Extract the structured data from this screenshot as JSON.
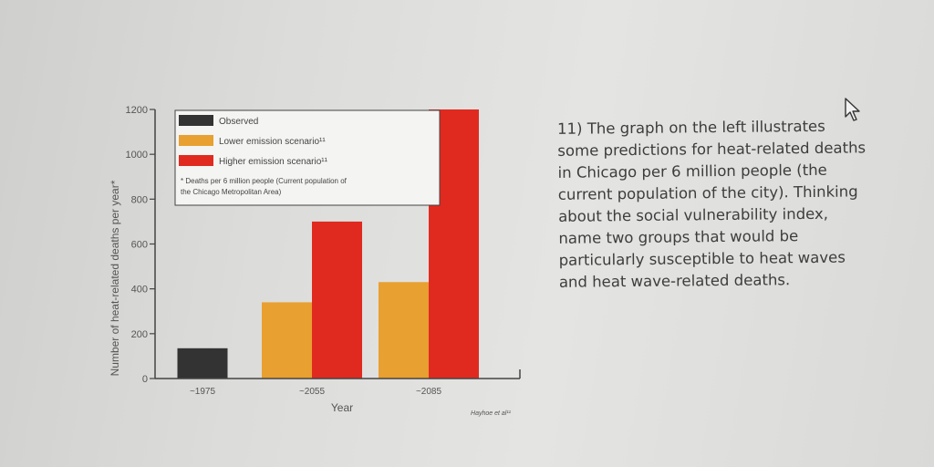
{
  "chart_data": {
    "type": "bar",
    "ylabel": "Number of heat-related deaths per year*",
    "xlabel": "Year",
    "categories": [
      "~1975",
      "~2055",
      "~2085"
    ],
    "ylim": [
      0,
      1200
    ],
    "yticks": [
      0,
      200,
      400,
      600,
      800,
      1000,
      1200
    ],
    "series": [
      {
        "name": "Observed",
        "color": "#333333",
        "values": [
          135,
          null,
          null
        ]
      },
      {
        "name": "Lower emission scenario",
        "color": "#e8a030",
        "values": [
          null,
          340,
          430
        ]
      },
      {
        "name": "Higher emission scenario",
        "color": "#e02a20",
        "values": [
          null,
          700,
          1200
        ]
      }
    ],
    "legend": {
      "position": "top-left",
      "entries": [
        "Observed",
        "Lower emission scenario¹¹",
        "Higher emission scenario¹¹"
      ],
      "footnote_line1": "* Deaths per 6 million people (Current population of",
      "footnote_line2": "the Chicago Metropolitan Area)"
    },
    "source": "Hayhoe et al¹¹",
    "grid": false
  },
  "question": {
    "text": "11) The graph on the left illustrates\nsome predictions for heat-related deaths\nin Chicago per 6 million people (the\ncurrent population of the city). Thinking\nabout the social vulnerability index,\nname two groups that would be\nparticularly susceptible to heat waves\nand heat wave-related deaths."
  }
}
